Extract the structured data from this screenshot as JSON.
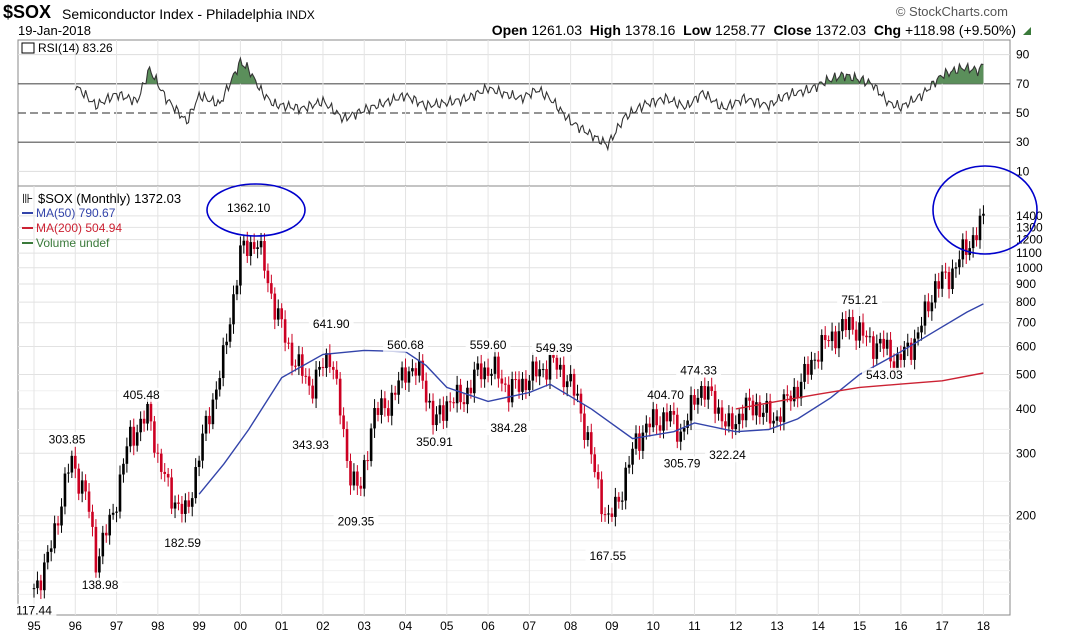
{
  "header": {
    "symbol": "$SOX",
    "name": "Semiconductor Index - Philadelphia",
    "exchange": "INDX",
    "date": "19-Jan-2018",
    "brand": "© StockCharts.com",
    "open_label": "Open",
    "open": "1261.03",
    "high_label": "High",
    "high": "1378.16",
    "low_label": "Low",
    "low": "1258.77",
    "close_label": "Close",
    "close": "1372.03",
    "chg_label": "Chg",
    "chg": "+118.98 (+9.50%)"
  },
  "colors": {
    "up": "#000000",
    "down": "#cc0022",
    "ma50": "#3344aa",
    "ma200": "#cc2233",
    "rsi_fill": "#5b8f5b",
    "ellipse": "#0000cc"
  },
  "chart_data": [
    {
      "type": "line",
      "panel": "RSI",
      "legend": "RSI(14) 83.26",
      "ylim": [
        0,
        100
      ],
      "yticks": [
        10,
        30,
        50,
        70,
        90
      ],
      "reference_lines": [
        30,
        50,
        70
      ],
      "x": [
        1996.0,
        1996.5,
        1997.0,
        1997.5,
        1997.8,
        1998.2,
        1998.7,
        1999.0,
        1999.5,
        2000.0,
        2000.2,
        2000.5,
        2000.8,
        2001.5,
        2002.0,
        2002.5,
        2003.0,
        2003.5,
        2004.0,
        2004.5,
        2005.0,
        2005.5,
        2006.0,
        2006.3,
        2006.8,
        2007.2,
        2007.5,
        2008.0,
        2008.5,
        2008.9,
        2009.3,
        2009.8,
        2010.3,
        2010.8,
        2011.2,
        2011.7,
        2012.2,
        2012.8,
        2013.2,
        2013.8,
        2014.2,
        2014.6,
        2015.0,
        2015.3,
        2015.7,
        2016.0,
        2016.5,
        2017.0,
        2017.5,
        2017.9,
        2018.0
      ],
      "values": [
        69,
        55,
        63,
        58,
        80,
        60,
        44,
        62,
        56,
        85,
        80,
        65,
        56,
        53,
        58,
        46,
        52,
        57,
        62,
        55,
        57,
        60,
        67,
        64,
        60,
        66,
        60,
        44,
        35,
        28,
        47,
        56,
        60,
        54,
        64,
        53,
        60,
        55,
        62,
        66,
        72,
        76,
        73,
        70,
        57,
        54,
        62,
        76,
        81,
        79,
        83.26
      ]
    },
    {
      "type": "candlestick",
      "panel": "price",
      "title": "$SOX (Monthly) 1372.03",
      "yscale": "log",
      "ylim": [
        105,
        1700
      ],
      "yticks": [
        200,
        300,
        400,
        500,
        600,
        700,
        800,
        900,
        1000,
        1100,
        1200,
        1300,
        1400
      ],
      "x_tick_labels": [
        "95",
        "96",
        "97",
        "98",
        "99",
        "00",
        "01",
        "02",
        "03",
        "04",
        "05",
        "06",
        "07",
        "08",
        "09",
        "10",
        "11",
        "12",
        "13",
        "14",
        "15",
        "16",
        "17",
        "18"
      ],
      "path_x": [
        1995.0,
        1995.3,
        1995.9,
        1996.3,
        1996.5,
        1996.9,
        1997.3,
        1997.8,
        1998.0,
        1998.3,
        1998.7,
        1999.0,
        1999.6,
        2000.0,
        2000.4,
        2000.8,
        2001.2,
        2001.7,
        2002.2,
        2002.6,
        2002.9,
        2003.2,
        2003.7,
        2004.0,
        2004.4,
        2004.7,
        2005.0,
        2005.4,
        2005.8,
        2006.2,
        2006.5,
        2006.9,
        2007.3,
        2007.6,
        2007.9,
        2008.2,
        2008.6,
        2008.9,
        2009.2,
        2009.6,
        2010.0,
        2010.4,
        2010.7,
        2011.1,
        2011.5,
        2011.8,
        2012.2,
        2012.5,
        2012.9,
        2013.3,
        2013.7,
        2014.0,
        2014.4,
        2014.8,
        2015.2,
        2015.6,
        2015.9,
        2016.4,
        2016.8,
        2017.2,
        2017.6,
        2017.9,
        2018.0
      ],
      "path_close": [
        125,
        145,
        290,
        220,
        150,
        200,
        330,
        390,
        290,
        230,
        200,
        300,
        560,
        1100,
        1200,
        800,
        580,
        460,
        580,
        280,
        230,
        380,
        430,
        520,
        500,
        360,
        420,
        430,
        520,
        510,
        450,
        480,
        520,
        540,
        490,
        420,
        260,
        190,
        230,
        330,
        370,
        380,
        340,
        460,
        420,
        350,
        400,
        410,
        370,
        430,
        500,
        590,
        650,
        700,
        620,
        600,
        540,
        640,
        880,
        960,
        1150,
        1290,
        1372.03
      ],
      "annotations": [
        {
          "label": "117.44",
          "x": 1995.0,
          "y": 117.44,
          "pos": "below"
        },
        {
          "label": "303.85",
          "x": 1995.8,
          "y": 303.85,
          "pos": "above"
        },
        {
          "label": "138.98",
          "x": 1996.6,
          "y": 138.98,
          "pos": "below"
        },
        {
          "label": "405.48",
          "x": 1997.6,
          "y": 405.48,
          "pos": "above"
        },
        {
          "label": "182.59",
          "x": 1998.6,
          "y": 182.59,
          "pos": "below"
        },
        {
          "label": "1362.10",
          "x": 2000.2,
          "y": 1362.1,
          "pos": "above"
        },
        {
          "label": "641.90",
          "x": 2002.2,
          "y": 641.9,
          "pos": "above"
        },
        {
          "label": "343.93",
          "x": 2001.7,
          "y": 343.93,
          "pos": "below"
        },
        {
          "label": "209.35",
          "x": 2002.8,
          "y": 209.35,
          "pos": "below"
        },
        {
          "label": "560.68",
          "x": 2004.0,
          "y": 560.68,
          "pos": "above"
        },
        {
          "label": "350.91",
          "x": 2004.7,
          "y": 350.91,
          "pos": "below"
        },
        {
          "label": "559.60",
          "x": 2006.0,
          "y": 559.6,
          "pos": "above"
        },
        {
          "label": "384.28",
          "x": 2006.5,
          "y": 384.28,
          "pos": "below"
        },
        {
          "label": "549.39",
          "x": 2007.6,
          "y": 549.39,
          "pos": "above"
        },
        {
          "label": "167.55",
          "x": 2008.9,
          "y": 167.55,
          "pos": "below"
        },
        {
          "label": "404.70",
          "x": 2010.3,
          "y": 404.7,
          "pos": "above"
        },
        {
          "label": "474.33",
          "x": 2011.1,
          "y": 474.33,
          "pos": "above"
        },
        {
          "label": "305.79",
          "x": 2010.7,
          "y": 305.79,
          "pos": "below"
        },
        {
          "label": "322.24",
          "x": 2011.8,
          "y": 322.24,
          "pos": "below"
        },
        {
          "label": "751.21",
          "x": 2015.0,
          "y": 751.21,
          "pos": "above"
        },
        {
          "label": "543.03",
          "x": 2015.6,
          "y": 543.03,
          "pos": "below"
        }
      ],
      "series": [
        {
          "name": "MA(50) 790.67",
          "x": [
            1999.0,
            1999.6,
            2000.2,
            2001.0,
            2002.0,
            2003.0,
            2004.0,
            2004.5,
            2005.0,
            2006.0,
            2007.0,
            2007.5,
            2008.5,
            2009.5,
            2010.5,
            2011.0,
            2012.0,
            2012.8,
            2013.5,
            2014.3,
            2015.0,
            2016.0,
            2016.8,
            2017.6,
            2018.0
          ],
          "values": [
            230,
            280,
            350,
            490,
            570,
            585,
            580,
            530,
            460,
            420,
            445,
            470,
            400,
            330,
            345,
            365,
            345,
            350,
            375,
            430,
            500,
            580,
            660,
            750,
            790.67
          ]
        },
        {
          "name": "MA(200) 504.94",
          "x": [
            2012.0,
            2013.0,
            2014.0,
            2015.0,
            2016.0,
            2017.0,
            2018.0
          ],
          "values": [
            400,
            420,
            440,
            460,
            470,
            480,
            504.94
          ]
        },
        {
          "name": "Volume undef",
          "x": [],
          "values": []
        }
      ]
    }
  ]
}
